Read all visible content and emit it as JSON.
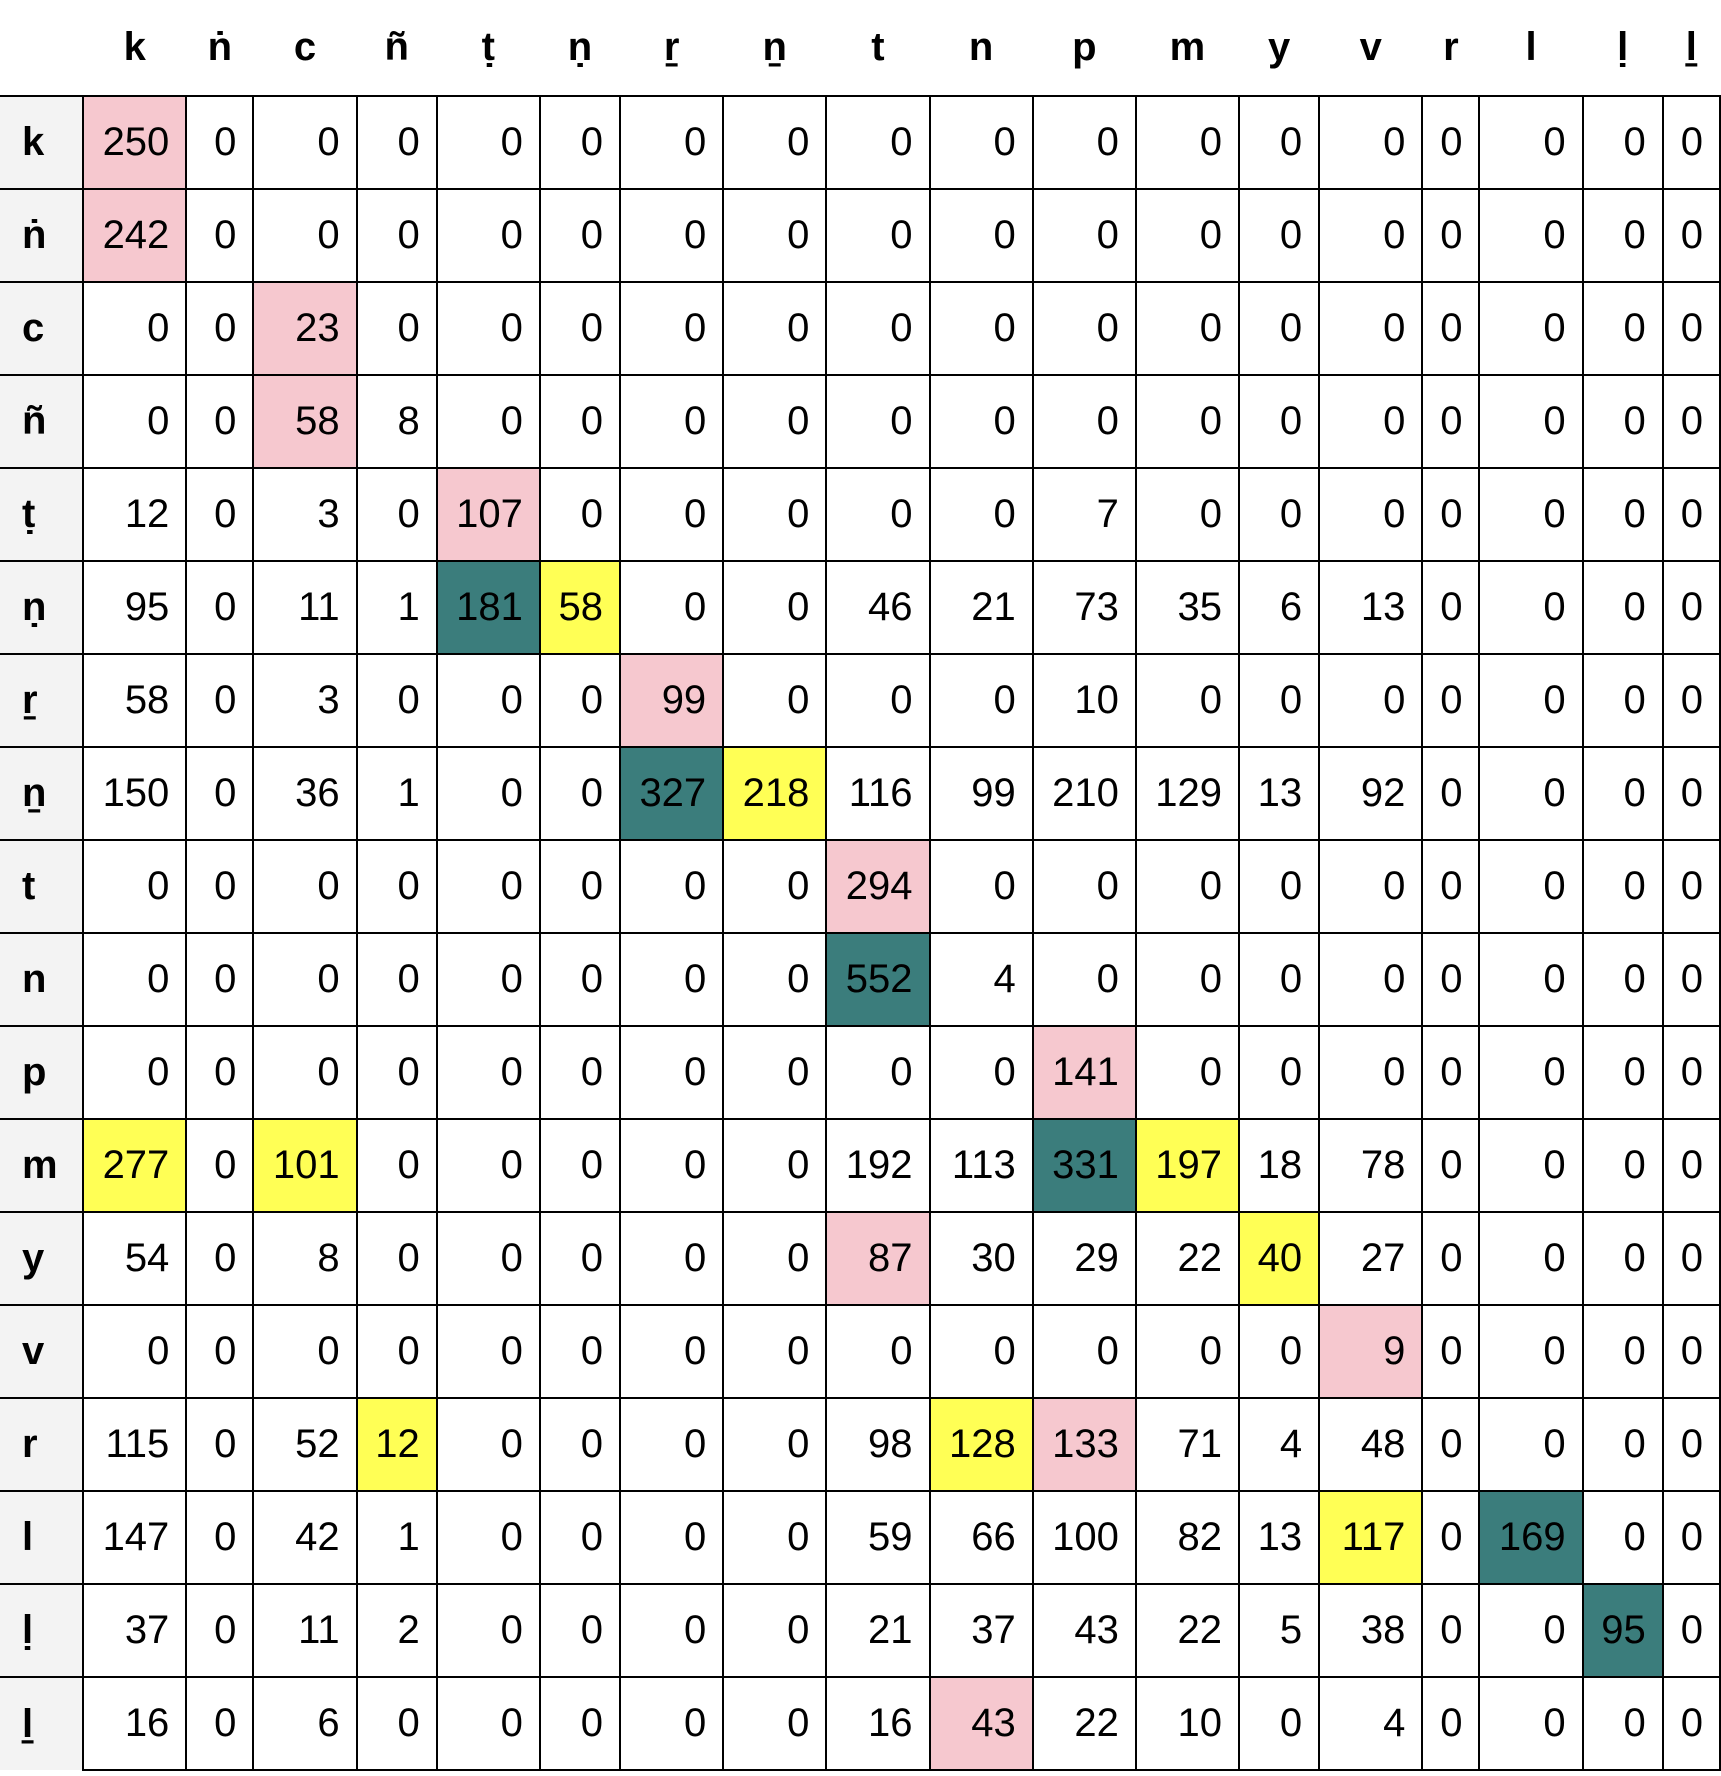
{
  "columns": [
    "k",
    "ṅ",
    "c",
    "ñ",
    "ṭ",
    "ṇ",
    "ṟ",
    "ṉ",
    "t",
    "n",
    "p",
    "m",
    "y",
    "v",
    "r",
    "l",
    "ḷ",
    "ḻ"
  ],
  "colors": {
    "pink": "#f6c8cf",
    "yellow": "#ffff55",
    "teal": "#3b7d7c"
  },
  "rows": [
    {
      "label": "k",
      "values": [
        250,
        0,
        0,
        0,
        0,
        0,
        0,
        0,
        0,
        0,
        0,
        0,
        0,
        0,
        0,
        0,
        0,
        0
      ],
      "highlights": {
        "0": "pink"
      }
    },
    {
      "label": "ṅ",
      "values": [
        242,
        0,
        0,
        0,
        0,
        0,
        0,
        0,
        0,
        0,
        0,
        0,
        0,
        0,
        0,
        0,
        0,
        0
      ],
      "highlights": {
        "0": "pink"
      }
    },
    {
      "label": "c",
      "values": [
        0,
        0,
        23,
        0,
        0,
        0,
        0,
        0,
        0,
        0,
        0,
        0,
        0,
        0,
        0,
        0,
        0,
        0
      ],
      "highlights": {
        "2": "pink"
      }
    },
    {
      "label": "ñ",
      "values": [
        0,
        0,
        58,
        8,
        0,
        0,
        0,
        0,
        0,
        0,
        0,
        0,
        0,
        0,
        0,
        0,
        0,
        0
      ],
      "highlights": {
        "2": "pink"
      }
    },
    {
      "label": "ṭ",
      "values": [
        12,
        0,
        3,
        0,
        107,
        0,
        0,
        0,
        0,
        0,
        7,
        0,
        0,
        0,
        0,
        0,
        0,
        0
      ],
      "highlights": {
        "4": "pink"
      }
    },
    {
      "label": "ṇ",
      "values": [
        95,
        0,
        11,
        1,
        181,
        58,
        0,
        0,
        46,
        21,
        73,
        35,
        6,
        13,
        0,
        0,
        0,
        0
      ],
      "highlights": {
        "4": "teal",
        "5": "yellow"
      }
    },
    {
      "label": "ṟ",
      "values": [
        58,
        0,
        3,
        0,
        0,
        0,
        99,
        0,
        0,
        0,
        10,
        0,
        0,
        0,
        0,
        0,
        0,
        0
      ],
      "highlights": {
        "6": "pink"
      }
    },
    {
      "label": "ṉ",
      "values": [
        150,
        0,
        36,
        1,
        0,
        0,
        327,
        218,
        116,
        99,
        210,
        129,
        13,
        92,
        0,
        0,
        0,
        0
      ],
      "highlights": {
        "6": "teal",
        "7": "yellow"
      }
    },
    {
      "label": "t",
      "values": [
        0,
        0,
        0,
        0,
        0,
        0,
        0,
        0,
        294,
        0,
        0,
        0,
        0,
        0,
        0,
        0,
        0,
        0
      ],
      "highlights": {
        "8": "pink"
      }
    },
    {
      "label": "n",
      "values": [
        0,
        0,
        0,
        0,
        0,
        0,
        0,
        0,
        552,
        4,
        0,
        0,
        0,
        0,
        0,
        0,
        0,
        0
      ],
      "highlights": {
        "8": "teal"
      }
    },
    {
      "label": "p",
      "values": [
        0,
        0,
        0,
        0,
        0,
        0,
        0,
        0,
        0,
        0,
        141,
        0,
        0,
        0,
        0,
        0,
        0,
        0
      ],
      "highlights": {
        "10": "pink"
      }
    },
    {
      "label": "m",
      "values": [
        277,
        0,
        101,
        0,
        0,
        0,
        0,
        0,
        192,
        113,
        331,
        197,
        18,
        78,
        0,
        0,
        0,
        0
      ],
      "highlights": {
        "0": "yellow",
        "2": "yellow",
        "10": "teal",
        "11": "yellow"
      }
    },
    {
      "label": "y",
      "values": [
        54,
        0,
        8,
        0,
        0,
        0,
        0,
        0,
        87,
        30,
        29,
        22,
        40,
        27,
        0,
        0,
        0,
        0
      ],
      "highlights": {
        "8": "pink",
        "12": "yellow"
      }
    },
    {
      "label": "v",
      "values": [
        0,
        0,
        0,
        0,
        0,
        0,
        0,
        0,
        0,
        0,
        0,
        0,
        0,
        9,
        0,
        0,
        0,
        0
      ],
      "highlights": {
        "13": "pink"
      }
    },
    {
      "label": "r",
      "values": [
        115,
        0,
        52,
        12,
        0,
        0,
        0,
        0,
        98,
        128,
        133,
        71,
        4,
        48,
        0,
        0,
        0,
        0
      ],
      "highlights": {
        "3": "yellow",
        "9": "yellow",
        "10": "pink"
      }
    },
    {
      "label": "l",
      "values": [
        147,
        0,
        42,
        1,
        0,
        0,
        0,
        0,
        59,
        66,
        100,
        82,
        13,
        117,
        0,
        169,
        0,
        0
      ],
      "highlights": {
        "13": "yellow",
        "15": "teal"
      }
    },
    {
      "label": "ḷ",
      "values": [
        37,
        0,
        11,
        2,
        0,
        0,
        0,
        0,
        21,
        37,
        43,
        22,
        5,
        38,
        0,
        0,
        95,
        0
      ],
      "highlights": {
        "16": "teal"
      }
    },
    {
      "label": "ḻ",
      "values": [
        16,
        0,
        6,
        0,
        0,
        0,
        0,
        0,
        16,
        43,
        22,
        10,
        0,
        4,
        0,
        0,
        0,
        0
      ],
      "highlights": {
        "9": "pink"
      }
    }
  ]
}
